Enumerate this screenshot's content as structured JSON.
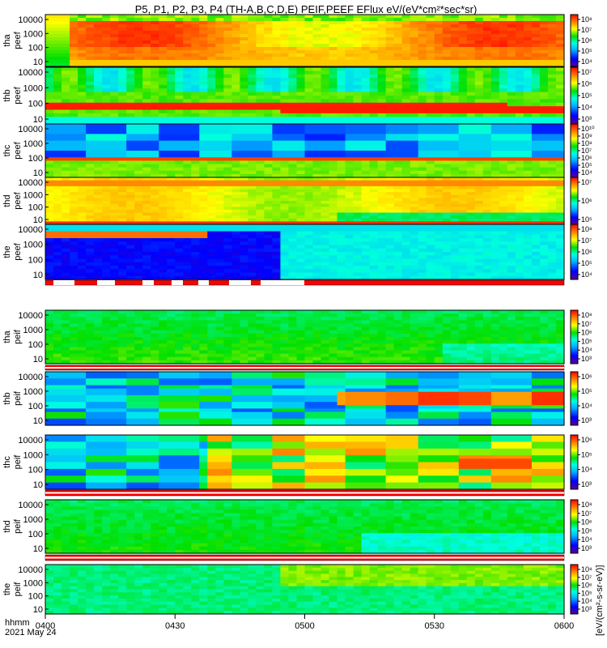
{
  "title": "P5, P1, P2, P3, P4 (TH-A,B,C,D,E) PEIF,PEEF EFlux eV/(eV*cm²*sec*sr)",
  "corner_label": {
    "line1": "hhmm",
    "line2": "2021 May 24"
  },
  "colorbar_unit": "[eV/(cm²-s-sr-eV)]",
  "chart_data": {
    "type": "heatmap",
    "x_axis": {
      "ticks": [
        "0400",
        "0430",
        "0500",
        "0530",
        "0600"
      ],
      "range": [
        "0400",
        "0600"
      ]
    },
    "y_axis": {
      "scale": "log",
      "ticks": [
        "10",
        "100",
        "1000",
        "10000"
      ]
    },
    "panels": [
      {
        "id": "tha-peef",
        "label1": "tha",
        "label2": "peef",
        "cb_ticks": [
          "10⁴",
          "10⁵",
          "10⁶",
          "10⁷",
          "10⁸"
        ]
      },
      {
        "id": "thb-peef",
        "label1": "thb",
        "label2": "peef",
        "cb_ticks": [
          "10³",
          "10⁴",
          "10⁵",
          "10⁶",
          "10⁷"
        ]
      },
      {
        "id": "thc-peef",
        "label1": "thc",
        "label2": "peef",
        "cb_ticks": [
          "10⁴",
          "10⁵",
          "10⁶",
          "10⁷",
          "10⁸",
          "10⁹",
          "10¹⁰"
        ]
      },
      {
        "id": "thd-peef",
        "label1": "thd",
        "label2": "peef",
        "cb_ticks": [
          "10⁵",
          "10⁶",
          "10⁷"
        ]
      },
      {
        "id": "the-peef",
        "label1": "the",
        "label2": "peef",
        "cb_ticks": [
          "10⁴",
          "10⁵",
          "10⁶",
          "10⁷",
          "10⁸"
        ]
      },
      {
        "id": "tha-peif",
        "label1": "tha",
        "label2": "peif",
        "cb_ticks": [
          "10³",
          "10⁴",
          "10⁵",
          "10⁶",
          "10⁷",
          "10⁸"
        ]
      },
      {
        "id": "thb-peif",
        "label1": "thb",
        "label2": "peif",
        "cb_ticks": [
          "10³",
          "10⁴",
          "10⁵",
          "10⁶"
        ]
      },
      {
        "id": "thc-peif",
        "label1": "thc",
        "label2": "peif",
        "cb_ticks": [
          "10³",
          "10⁴",
          "10⁵",
          "10⁶"
        ]
      },
      {
        "id": "thd-peif",
        "label1": "thd",
        "label2": "peif",
        "cb_ticks": [
          "10³",
          "10⁴",
          "10⁵",
          "10⁶",
          "10⁷",
          "10⁸"
        ]
      },
      {
        "id": "the-peif",
        "label1": "the",
        "label2": "peif",
        "cb_ticks": [
          "10³",
          "10⁴",
          "10⁵",
          "10⁶",
          "10⁷",
          "10⁸"
        ]
      }
    ]
  }
}
